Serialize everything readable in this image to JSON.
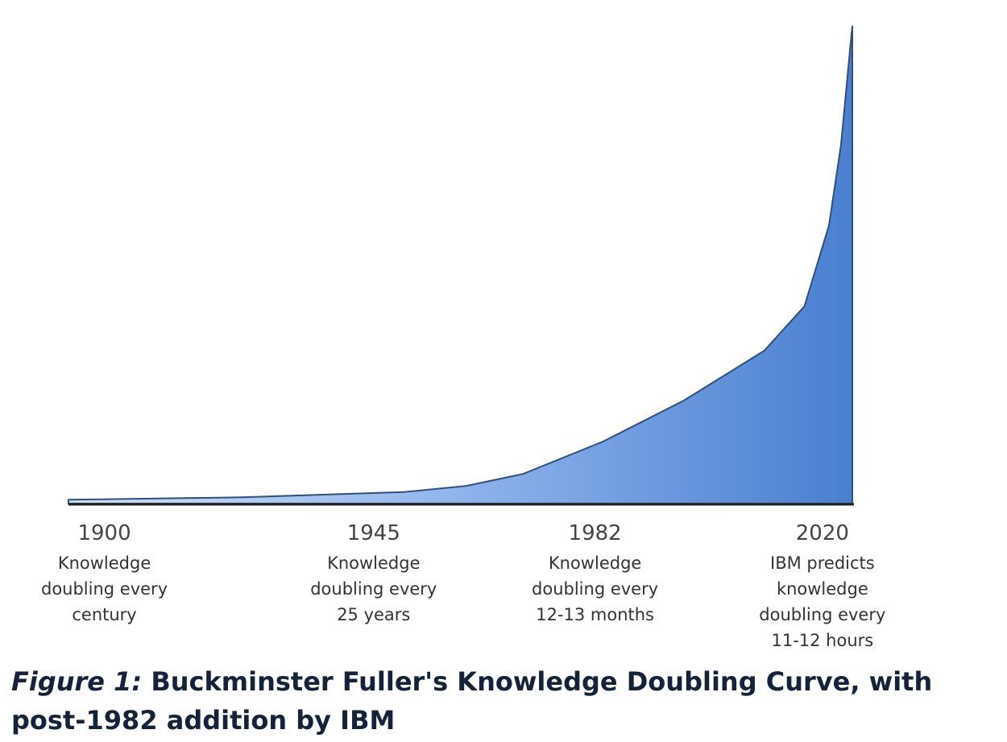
{
  "chart_data": {
    "type": "area",
    "x": [
      1894,
      1923,
      1950,
      1960.5,
      1970,
      1983.4,
      1996.9,
      2010.3,
      2017,
      2021.1,
      2023.1,
      2025
    ],
    "values": [
      0.8,
      1.3,
      2.4,
      3.7,
      6.2,
      13,
      21.6,
      32,
      41.3,
      58.2,
      75,
      100
    ],
    "xlim": [
      1894,
      2025
    ],
    "ylim": [
      0,
      100
    ],
    "xticks": [
      1900,
      1945,
      1982,
      2020
    ],
    "color": "#4a7fd0",
    "annotations": [
      [
        "Knowledge",
        "doubling every",
        "century"
      ],
      [
        "Knowledge",
        "doubling every",
        "25 years"
      ],
      [
        "Knowledge",
        "doubling every",
        "12-13 months"
      ],
      [
        "IBM predicts",
        "knowledge",
        "doubling every",
        "11-12 hours"
      ]
    ],
    "caption": {
      "label": "Figure 1:",
      "text": "Buckminster Fuller's Knowledge Doubling Curve, with post-1982 addition by IBM"
    }
  }
}
